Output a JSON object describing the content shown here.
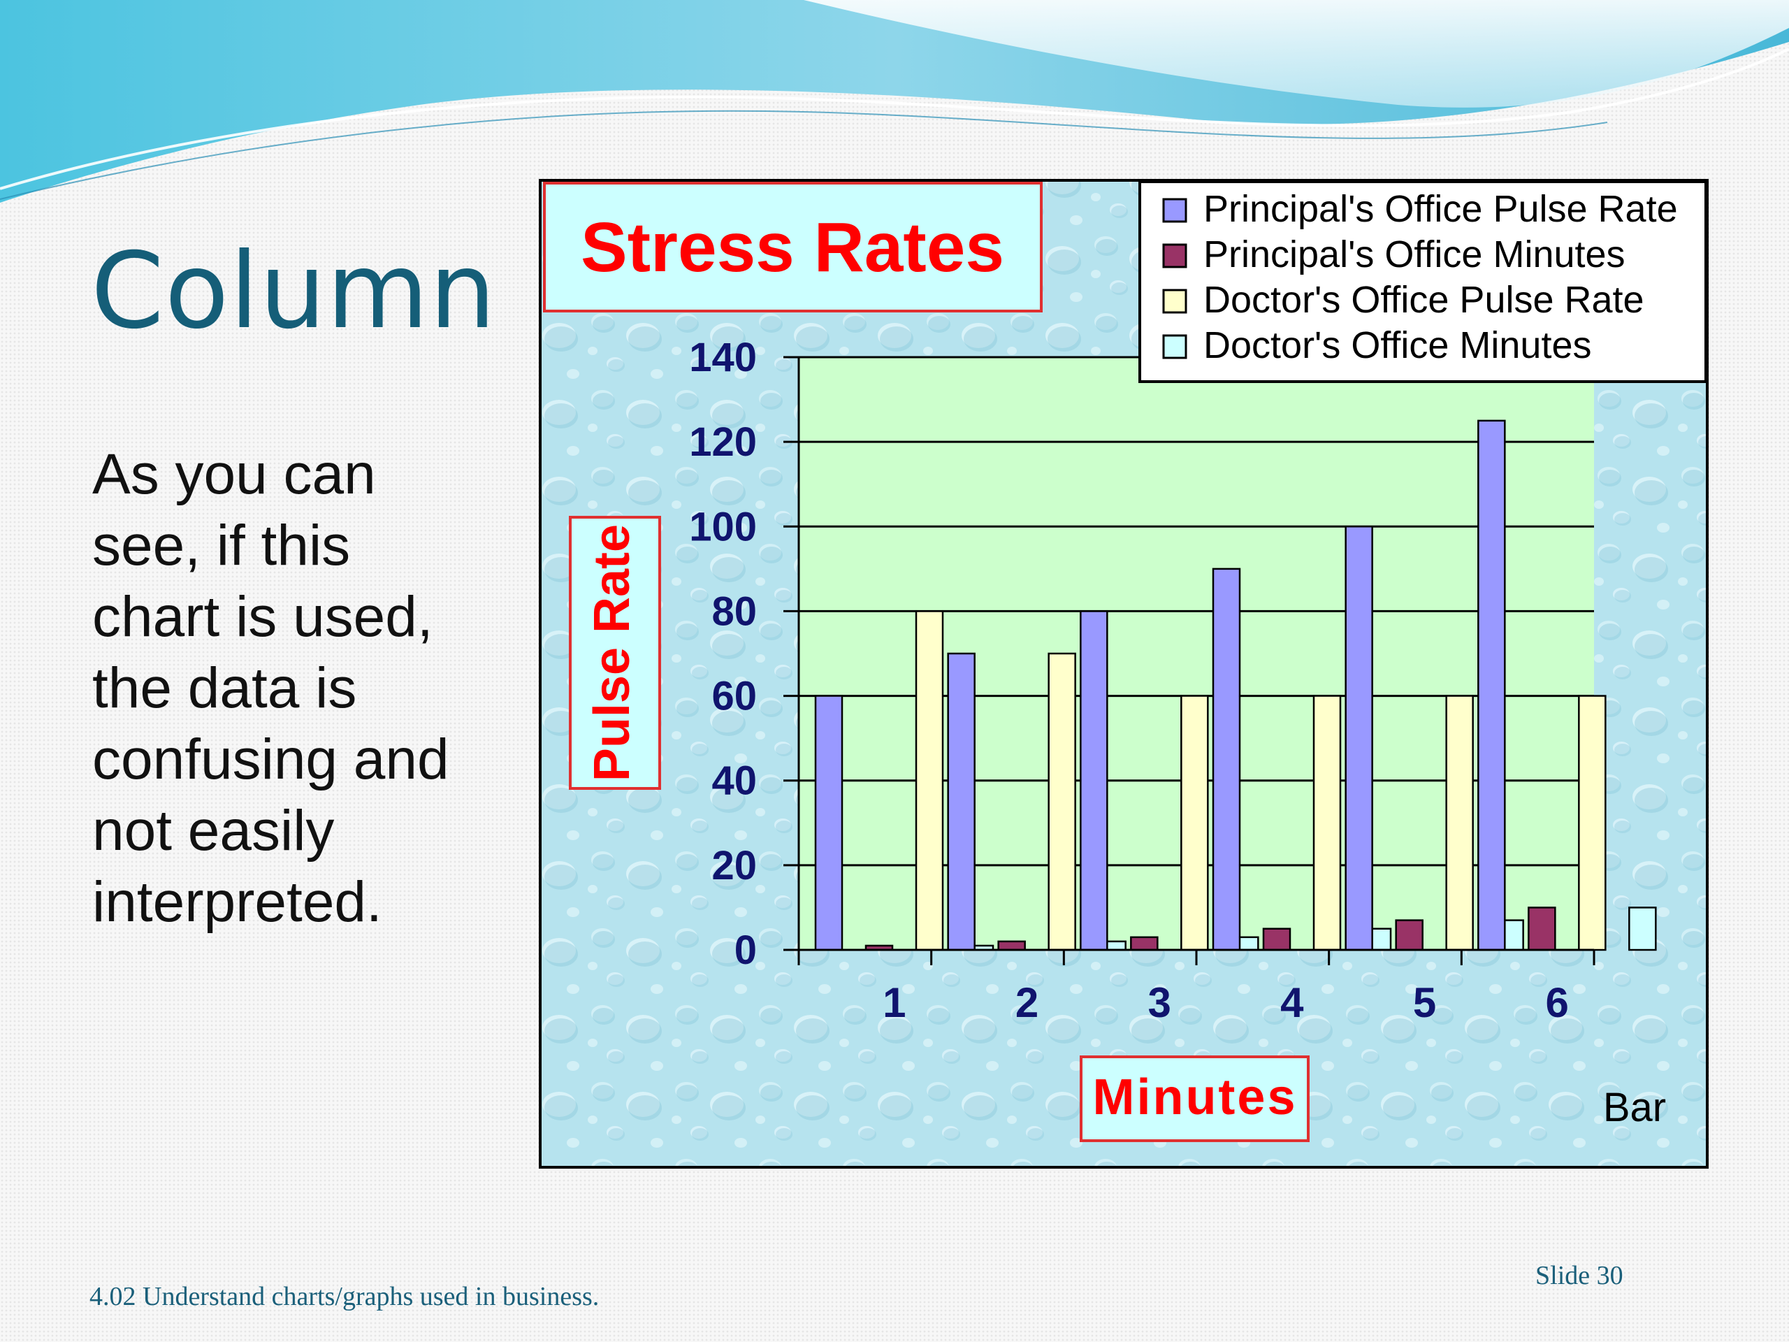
{
  "slide": {
    "title": "Column",
    "body": "As you can see, if this chart is used, the data is confusing and not easily interpreted.",
    "footer": "4.02 Understand charts/graphs used in business.",
    "slide_number": "Slide 30"
  },
  "chart_data": {
    "type": "bar",
    "title": "Stress Rates",
    "xlabel": "Minutes",
    "ylabel": "Pulse Rate",
    "categories": [
      "1",
      "2",
      "3",
      "4",
      "5",
      "6"
    ],
    "ylim": [
      0,
      140
    ],
    "yticks": [
      0,
      20,
      40,
      60,
      80,
      100,
      120,
      140
    ],
    "grid": true,
    "legend_position": "top-right",
    "series": [
      {
        "name": "Principal's Office Pulse Rate",
        "values": [
          60,
          70,
          80,
          90,
          100,
          125
        ],
        "color": "#9999ff"
      },
      {
        "name": "Principal's Office Minutes",
        "values": [
          1,
          2,
          3,
          5,
          7,
          10
        ],
        "color": "#993366"
      },
      {
        "name": "Doctor's Office Pulse Rate",
        "values": [
          80,
          70,
          60,
          60,
          60,
          60
        ],
        "color": "#ffffcc"
      },
      {
        "name": "Doctor's Office Minutes",
        "values": [
          1,
          2,
          3,
          5,
          7,
          10
        ],
        "color": "#ccffff"
      }
    ],
    "annotation": "Bar",
    "colors": {
      "plot_background": "#ccffcc",
      "title_box": "#ccffff",
      "title_text": "#ff0000",
      "tick_text": "#10146e"
    }
  }
}
